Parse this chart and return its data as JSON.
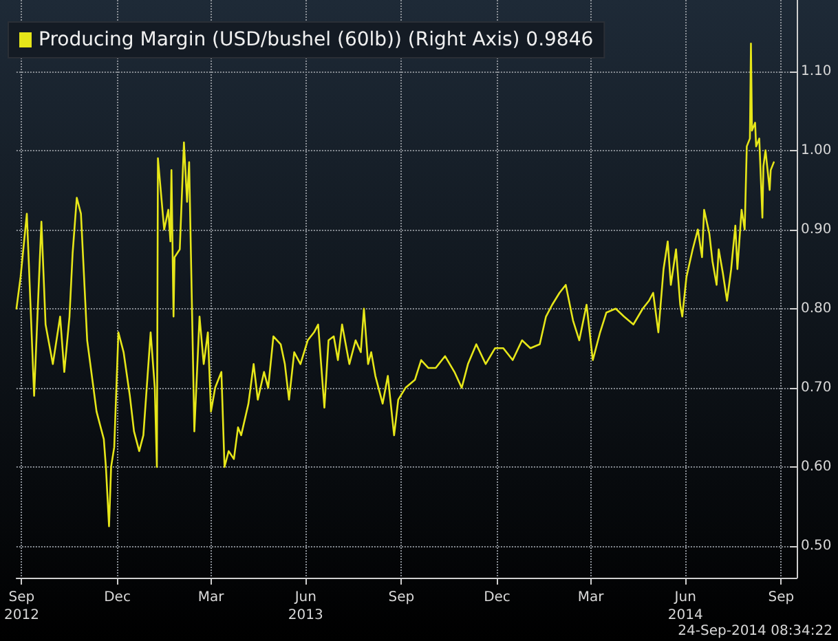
{
  "chart_data": {
    "type": "line",
    "x": [
      "2012-09-25",
      "2012-09-29",
      "2012-10-05",
      "2012-10-12",
      "2012-10-19",
      "2012-10-23",
      "2012-10-30",
      "2012-11-06",
      "2012-11-10",
      "2012-11-15",
      "2012-11-18",
      "2012-11-22",
      "2012-11-26",
      "2012-12-02",
      "2012-12-11",
      "2012-12-18",
      "2012-12-20",
      "2012-12-23",
      "2012-12-25",
      "2012-12-28",
      "2013-01-01",
      "2013-01-06",
      "2013-01-12",
      "2013-01-16",
      "2013-01-21",
      "2013-01-25",
      "2013-02-01",
      "2013-02-05",
      "2013-02-07",
      "2013-02-08",
      "2013-02-14",
      "2013-02-18",
      "2013-02-20",
      "2013-02-21",
      "2013-02-23",
      "2013-02-24",
      "2013-03-01",
      "2013-03-05",
      "2013-03-08",
      "2013-03-10",
      "2013-03-14",
      "2013-03-15",
      "2013-03-20",
      "2013-03-24",
      "2013-03-28",
      "2013-03-31",
      "2013-04-04",
      "2013-04-10",
      "2013-04-13",
      "2013-04-17",
      "2013-04-22",
      "2013-04-26",
      "2013-04-29",
      "2013-05-06",
      "2013-05-11",
      "2013-05-15",
      "2013-05-21",
      "2013-05-25",
      "2013-05-30",
      "2013-06-06",
      "2013-06-10",
      "2013-06-14",
      "2013-06-19",
      "2013-06-25",
      "2013-07-02",
      "2013-07-08",
      "2013-07-12",
      "2013-07-18",
      "2013-07-22",
      "2013-07-27",
      "2013-07-31",
      "2013-08-04",
      "2013-08-11",
      "2013-08-17",
      "2013-08-22",
      "2013-08-25",
      "2013-08-29",
      "2013-09-01",
      "2013-09-05",
      "2013-09-12",
      "2013-09-17",
      "2013-09-23",
      "2013-09-27",
      "2013-10-04",
      "2013-10-13",
      "2013-10-19",
      "2013-10-26",
      "2013-11-02",
      "2013-11-11",
      "2013-11-20",
      "2013-11-27",
      "2013-12-03",
      "2013-12-11",
      "2013-12-20",
      "2013-12-29",
      "2014-01-06",
      "2014-01-15",
      "2014-01-24",
      "2014-02-01",
      "2014-02-10",
      "2014-02-16",
      "2014-02-22",
      "2014-03-01",
      "2014-03-07",
      "2014-03-14",
      "2014-03-20",
      "2014-03-27",
      "2014-04-02",
      "2014-04-09",
      "2014-04-15",
      "2014-04-24",
      "2014-05-02",
      "2014-05-11",
      "2014-05-20",
      "2014-05-26",
      "2014-05-30",
      "2014-06-04",
      "2014-06-09",
      "2014-06-13",
      "2014-06-16",
      "2014-06-21",
      "2014-06-25",
      "2014-06-27",
      "2014-07-01",
      "2014-07-07",
      "2014-07-12",
      "2014-07-16",
      "2014-07-18",
      "2014-07-23",
      "2014-07-26",
      "2014-07-30",
      "2014-08-01",
      "2014-08-05",
      "2014-08-09",
      "2014-08-13",
      "2014-08-17",
      "2014-08-19",
      "2014-08-23",
      "2014-08-26",
      "2014-08-28",
      "2014-08-31",
      "2014-09-01",
      "2014-09-02",
      "2014-09-05",
      "2014-09-06",
      "2014-09-09",
      "2014-09-12",
      "2014-09-13",
      "2014-09-15",
      "2014-09-19",
      "2014-09-20",
      "2014-09-23"
    ],
    "series": [
      {
        "name": "Producing Margin (USD/bushel (60lb)) (Right Axis) 0.9846",
        "color": "#e6e619",
        "values": [
          0.8,
          0.84,
          0.92,
          0.69,
          0.91,
          0.78,
          0.73,
          0.79,
          0.72,
          0.79,
          0.87,
          0.94,
          0.92,
          0.76,
          0.67,
          0.635,
          0.6,
          0.525,
          0.6,
          0.625,
          0.77,
          0.745,
          0.69,
          0.645,
          0.62,
          0.64,
          0.77,
          0.7,
          0.6,
          0.99,
          0.9,
          0.925,
          0.885,
          0.975,
          0.79,
          0.865,
          0.875,
          1.01,
          0.935,
          0.985,
          0.715,
          0.645,
          0.79,
          0.73,
          0.77,
          0.67,
          0.7,
          0.72,
          0.6,
          0.62,
          0.61,
          0.65,
          0.64,
          0.68,
          0.73,
          0.685,
          0.72,
          0.7,
          0.765,
          0.755,
          0.73,
          0.685,
          0.745,
          0.73,
          0.76,
          0.77,
          0.78,
          0.675,
          0.76,
          0.765,
          0.735,
          0.78,
          0.73,
          0.76,
          0.745,
          0.8,
          0.73,
          0.745,
          0.715,
          0.68,
          0.715,
          0.64,
          0.685,
          0.7,
          0.71,
          0.735,
          0.725,
          0.725,
          0.74,
          0.72,
          0.7,
          0.73,
          0.755,
          0.73,
          0.75,
          0.75,
          0.735,
          0.76,
          0.75,
          0.755,
          0.79,
          0.805,
          0.82,
          0.83,
          0.785,
          0.76,
          0.805,
          0.735,
          0.77,
          0.795,
          0.8,
          0.79,
          0.78,
          0.8,
          0.81,
          0.82,
          0.77,
          0.85,
          0.885,
          0.83,
          0.875,
          0.805,
          0.79,
          0.84,
          0.875,
          0.9,
          0.865,
          0.925,
          0.895,
          0.86,
          0.83,
          0.875,
          0.845,
          0.81,
          0.85,
          0.905,
          0.85,
          0.925,
          0.9,
          1.005,
          1.015,
          1.135,
          1.025,
          1.035,
          1.005,
          1.015,
          0.915,
          0.98,
          1.0,
          0.95,
          0.975,
          0.985
        ]
      }
    ],
    "xlim": [
      "2012-09-25",
      "2014-10-15"
    ],
    "xticks": [
      {
        "value": "2012-09-30",
        "label": "Sep\n2012"
      },
      {
        "value": "2012-12-31",
        "label": "Dec"
      },
      {
        "value": "2013-03-31",
        "label": "Mar"
      },
      {
        "value": "2013-06-30",
        "label": "Jun\n2013"
      },
      {
        "value": "2013-09-30",
        "label": "Sep"
      },
      {
        "value": "2013-12-31",
        "label": "Dec"
      },
      {
        "value": "2014-03-31",
        "label": "Mar"
      },
      {
        "value": "2014-06-30",
        "label": "Jun\n2014"
      },
      {
        "value": "2014-09-30",
        "label": "Sep"
      }
    ],
    "ylim": [
      0.46,
      1.19
    ],
    "yticks": [
      {
        "value": 0.5,
        "label": "0.50"
      },
      {
        "value": 0.6,
        "label": "0.60"
      },
      {
        "value": 0.7,
        "label": "0.70"
      },
      {
        "value": 0.8,
        "label": "0.80"
      },
      {
        "value": 0.9,
        "label": "0.90"
      },
      {
        "value": 1.0,
        "label": "1.00"
      },
      {
        "value": 1.1,
        "label": "1.10"
      }
    ],
    "grid": true,
    "legend": "top left",
    "marker": "none",
    "line_style": "solid",
    "annotations": [
      "24-Sep-2014 08:34:22"
    ]
  }
}
